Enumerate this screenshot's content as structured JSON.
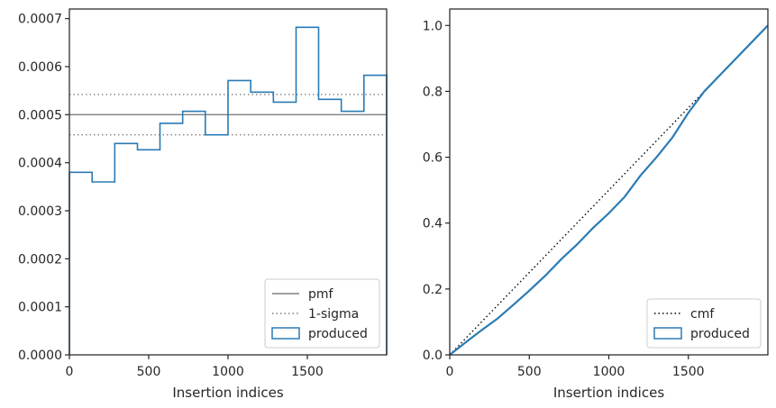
{
  "colors": {
    "produced": "#2a7bb5",
    "pmf": "#808080",
    "sigma": "#808080",
    "cmf": "#000000",
    "axes": "#262626"
  },
  "chart_data": [
    {
      "type": "step",
      "xlabel": "Insertion indices",
      "ylabel": "",
      "xlim": [
        0,
        2000
      ],
      "ylim": [
        0,
        0.00072
      ],
      "xticks": [
        0,
        500,
        1000,
        1500
      ],
      "xtick_labels": [
        "0",
        "500",
        "1000",
        "1500"
      ],
      "yticks": [
        0,
        0.0001,
        0.0002,
        0.0003,
        0.0004,
        0.0005,
        0.0006,
        0.0007
      ],
      "ytick_labels": [
        "0.0000",
        "0.0001",
        "0.0002",
        "0.0003",
        "0.0004",
        "0.0005",
        "0.0006",
        "0.0007"
      ],
      "bin_edges": [
        0,
        143,
        286,
        429,
        571,
        714,
        857,
        1000,
        1143,
        1286,
        1429,
        1571,
        1714,
        1857,
        2000
      ],
      "series": [
        {
          "name": "produced",
          "values": [
            0.00038,
            0.00036,
            0.00044,
            0.000427,
            0.000482,
            0.000507,
            0.000458,
            0.000571,
            0.000547,
            0.000526,
            0.000682,
            0.000532,
            0.000507,
            0.000582
          ]
        }
      ],
      "hlines": [
        {
          "name": "pmf",
          "y": 0.0005,
          "style": "solid"
        },
        {
          "name": "1-sigma",
          "y": 0.000542,
          "style": "dotted"
        },
        {
          "name": "1-sigma",
          "y": 0.000458,
          "style": "dotted"
        }
      ],
      "legend": {
        "position": "lower right",
        "items": [
          {
            "label": "pmf",
            "kind": "solid-line"
          },
          {
            "label": "1-sigma",
            "kind": "dotted-line"
          },
          {
            "label": "produced",
            "kind": "box"
          }
        ]
      }
    },
    {
      "type": "line",
      "xlabel": "Insertion indices",
      "ylabel": "",
      "xlim": [
        0,
        2000
      ],
      "ylim": [
        0,
        1.05
      ],
      "xticks": [
        0,
        500,
        1000,
        1500
      ],
      "xtick_labels": [
        "0",
        "500",
        "1000",
        "1500"
      ],
      "yticks": [
        0,
        0.2,
        0.4,
        0.6,
        0.8,
        1.0
      ],
      "ytick_labels": [
        "0.0",
        "0.2",
        "0.4",
        "0.6",
        "0.8",
        "1.0"
      ],
      "series": [
        {
          "name": "cmf",
          "style": "dotted",
          "x": [
            0,
            2000
          ],
          "y": [
            0,
            1.0
          ]
        },
        {
          "name": "produced",
          "style": "solid",
          "x": [
            0,
            100,
            200,
            300,
            400,
            500,
            600,
            700,
            800,
            900,
            1000,
            1100,
            1200,
            1300,
            1400,
            1500,
            1600,
            1700,
            1800,
            1900,
            2000
          ],
          "y": [
            0,
            0.038,
            0.075,
            0.11,
            0.152,
            0.195,
            0.24,
            0.29,
            0.335,
            0.385,
            0.43,
            0.48,
            0.545,
            0.6,
            0.66,
            0.735,
            0.8,
            0.85,
            0.9,
            0.95,
            1.0
          ]
        }
      ],
      "legend": {
        "position": "lower right",
        "items": [
          {
            "label": "cmf",
            "kind": "dotted-line"
          },
          {
            "label": "produced",
            "kind": "box"
          }
        ]
      }
    }
  ]
}
